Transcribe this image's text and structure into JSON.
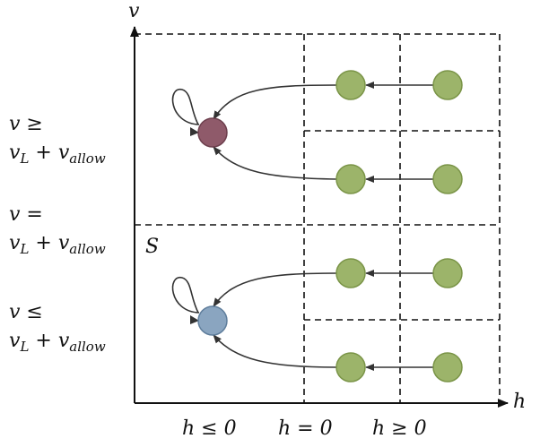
{
  "axes": {
    "x_label": "h",
    "y_label": "v"
  },
  "region_label": "S",
  "y_labels": {
    "ge": {
      "line1": "v ≥",
      "v": "v",
      "L": "L",
      "plus": " + ",
      "v2": "v",
      "allow": "allow"
    },
    "eq": {
      "line1": "v =",
      "v": "v",
      "L": "L",
      "plus": " + ",
      "v2": "v",
      "allow": "allow"
    },
    "le": {
      "line1": "v ≤",
      "v": "v",
      "L": "L",
      "plus": " + ",
      "v2": "v",
      "allow": "allow"
    }
  },
  "x_labels": {
    "neg": "h ≤ 0",
    "zero": "h = 0",
    "pos": "h ≥ 0"
  },
  "colors": {
    "green_node": "#9cb46a",
    "green_stroke": "#7a9447",
    "red_node": "#8f5a6a",
    "red_stroke": "#6d3f4d",
    "blue_node": "#8aa5c0",
    "blue_stroke": "#5f7e9c",
    "line": "#333333"
  }
}
